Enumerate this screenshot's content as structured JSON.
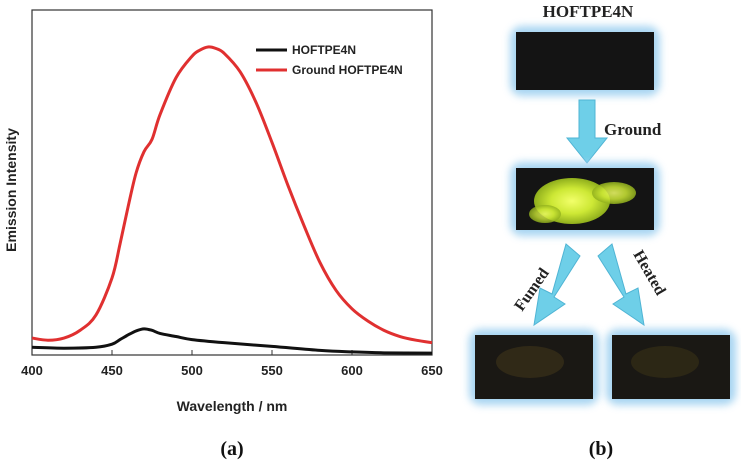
{
  "chart_data": {
    "type": "line",
    "xlabel": "Wavelength / nm",
    "ylabel": "Emission Intensity",
    "xlim": [
      400,
      650
    ],
    "x_ticks": [
      "400",
      "450",
      "500",
      "550",
      "600",
      "650"
    ],
    "ylim": [
      0,
      1.12
    ],
    "grid": false,
    "legend_position": "top-right",
    "series": [
      {
        "name": "HOFTPE4N",
        "color": "#111111",
        "x": [
          400,
          420,
          440,
          450,
          455,
          460,
          465,
          470,
          475,
          480,
          490,
          500,
          520,
          550,
          580,
          600,
          620,
          650
        ],
        "y": [
          0.025,
          0.022,
          0.025,
          0.035,
          0.05,
          0.065,
          0.078,
          0.085,
          0.08,
          0.07,
          0.06,
          0.05,
          0.04,
          0.028,
          0.015,
          0.01,
          0.007,
          0.006
        ]
      },
      {
        "name": "Ground HOFTPE4N",
        "color": "#e03030",
        "x": [
          400,
          410,
          420,
          430,
          440,
          450,
          455,
          460,
          465,
          470,
          475,
          480,
          490,
          500,
          505,
          510,
          515,
          520,
          530,
          540,
          550,
          560,
          570,
          580,
          590,
          600,
          610,
          620,
          630,
          640,
          650
        ],
        "y": [
          0.055,
          0.048,
          0.055,
          0.08,
          0.13,
          0.25,
          0.36,
          0.48,
          0.59,
          0.66,
          0.7,
          0.78,
          0.9,
          0.97,
          0.99,
          1.0,
          0.995,
          0.98,
          0.92,
          0.82,
          0.69,
          0.55,
          0.42,
          0.3,
          0.21,
          0.15,
          0.11,
          0.08,
          0.06,
          0.048,
          0.04
        ]
      }
    ]
  },
  "panel_a_label": "(a)",
  "panel_b": {
    "label": "(b)",
    "title": "HOFTPE4N",
    "arrow_ground": "Ground",
    "arrow_fumed": "Fumed",
    "arrow_heated": "Heated",
    "arrow_color": "#6ecfe8",
    "glow_color": "#9fd0f0",
    "powder_color": "#d8f53c"
  }
}
